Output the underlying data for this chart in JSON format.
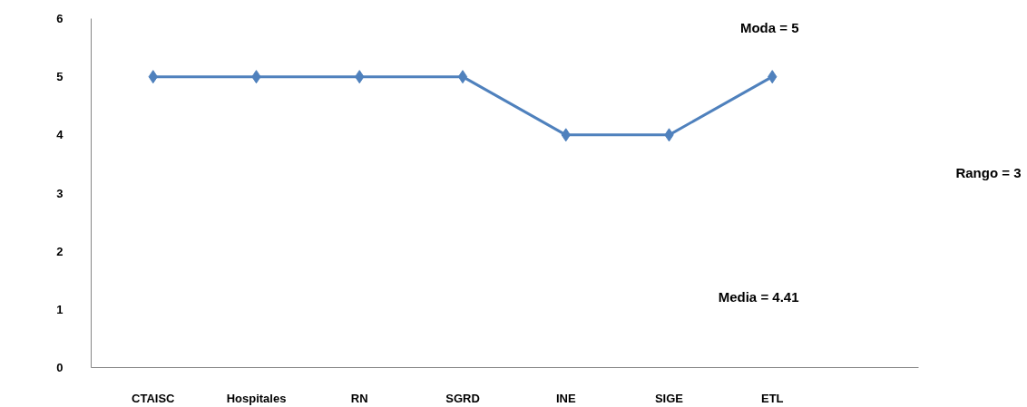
{
  "chart_data": {
    "type": "line",
    "categories": [
      "CTAISC",
      "Hospitales",
      "RN",
      "SGRD",
      "INE",
      "SIGE",
      "ETL"
    ],
    "series": [
      {
        "color": "#4f81bd",
        "values": [
          5,
          5,
          5,
          5,
          4,
          4,
          5
        ]
      }
    ],
    "ylim": [
      0,
      6
    ],
    "yticks": [
      0,
      1,
      2,
      3,
      4,
      5,
      6
    ],
    "marker": "diamond",
    "line_style": "solid",
    "grid": false,
    "annotations": [
      "Moda = 5",
      "Rango = 3",
      "Media = 4.41"
    ]
  }
}
